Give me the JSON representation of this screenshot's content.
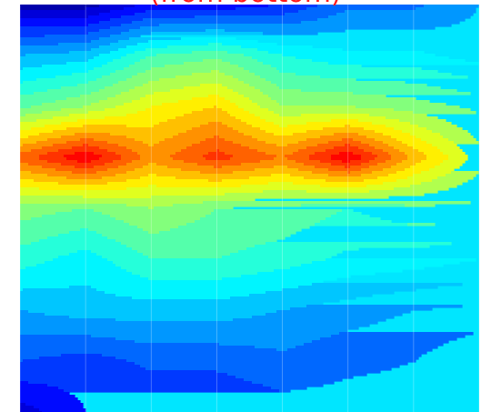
{
  "chart_data": {
    "type": "heatmap",
    "title": "(from bottom)",
    "title_color": "#ff1a1a",
    "colormap": "jet",
    "grid": true,
    "x": [
      0,
      1,
      2,
      3,
      4,
      5,
      6,
      7
    ],
    "y": [
      0,
      1,
      2,
      3,
      4,
      5,
      6,
      7,
      8
    ],
    "values": [
      [
        0.18,
        0.18,
        0.25,
        0.25,
        0.28,
        0.35,
        0.35,
        0.4
      ],
      [
        0.4,
        0.42,
        0.52,
        0.55,
        0.48,
        0.45,
        0.45,
        0.42
      ],
      [
        0.55,
        0.6,
        0.68,
        0.72,
        0.6,
        0.6,
        0.58,
        0.55
      ],
      [
        0.82,
        0.92,
        0.78,
        0.86,
        0.8,
        0.92,
        0.75,
        0.62
      ],
      [
        0.58,
        0.56,
        0.6,
        0.56,
        0.55,
        0.52,
        0.55,
        0.55
      ],
      [
        0.5,
        0.46,
        0.52,
        0.52,
        0.5,
        0.47,
        0.46,
        0.44
      ],
      [
        0.4,
        0.42,
        0.42,
        0.42,
        0.4,
        0.38,
        0.36,
        0.35
      ],
      [
        0.32,
        0.3,
        0.33,
        0.33,
        0.35,
        0.33,
        0.32,
        0.28
      ],
      [
        0.22,
        0.28,
        0.28,
        0.28,
        0.3,
        0.3,
        0.3,
        0.28
      ]
    ],
    "levels": [
      0.2,
      0.24,
      0.28,
      0.32,
      0.36,
      0.4,
      0.44,
      0.48,
      0.52,
      0.56,
      0.6,
      0.64,
      0.68,
      0.72,
      0.76,
      0.8,
      0.84,
      0.88,
      0.92
    ]
  }
}
